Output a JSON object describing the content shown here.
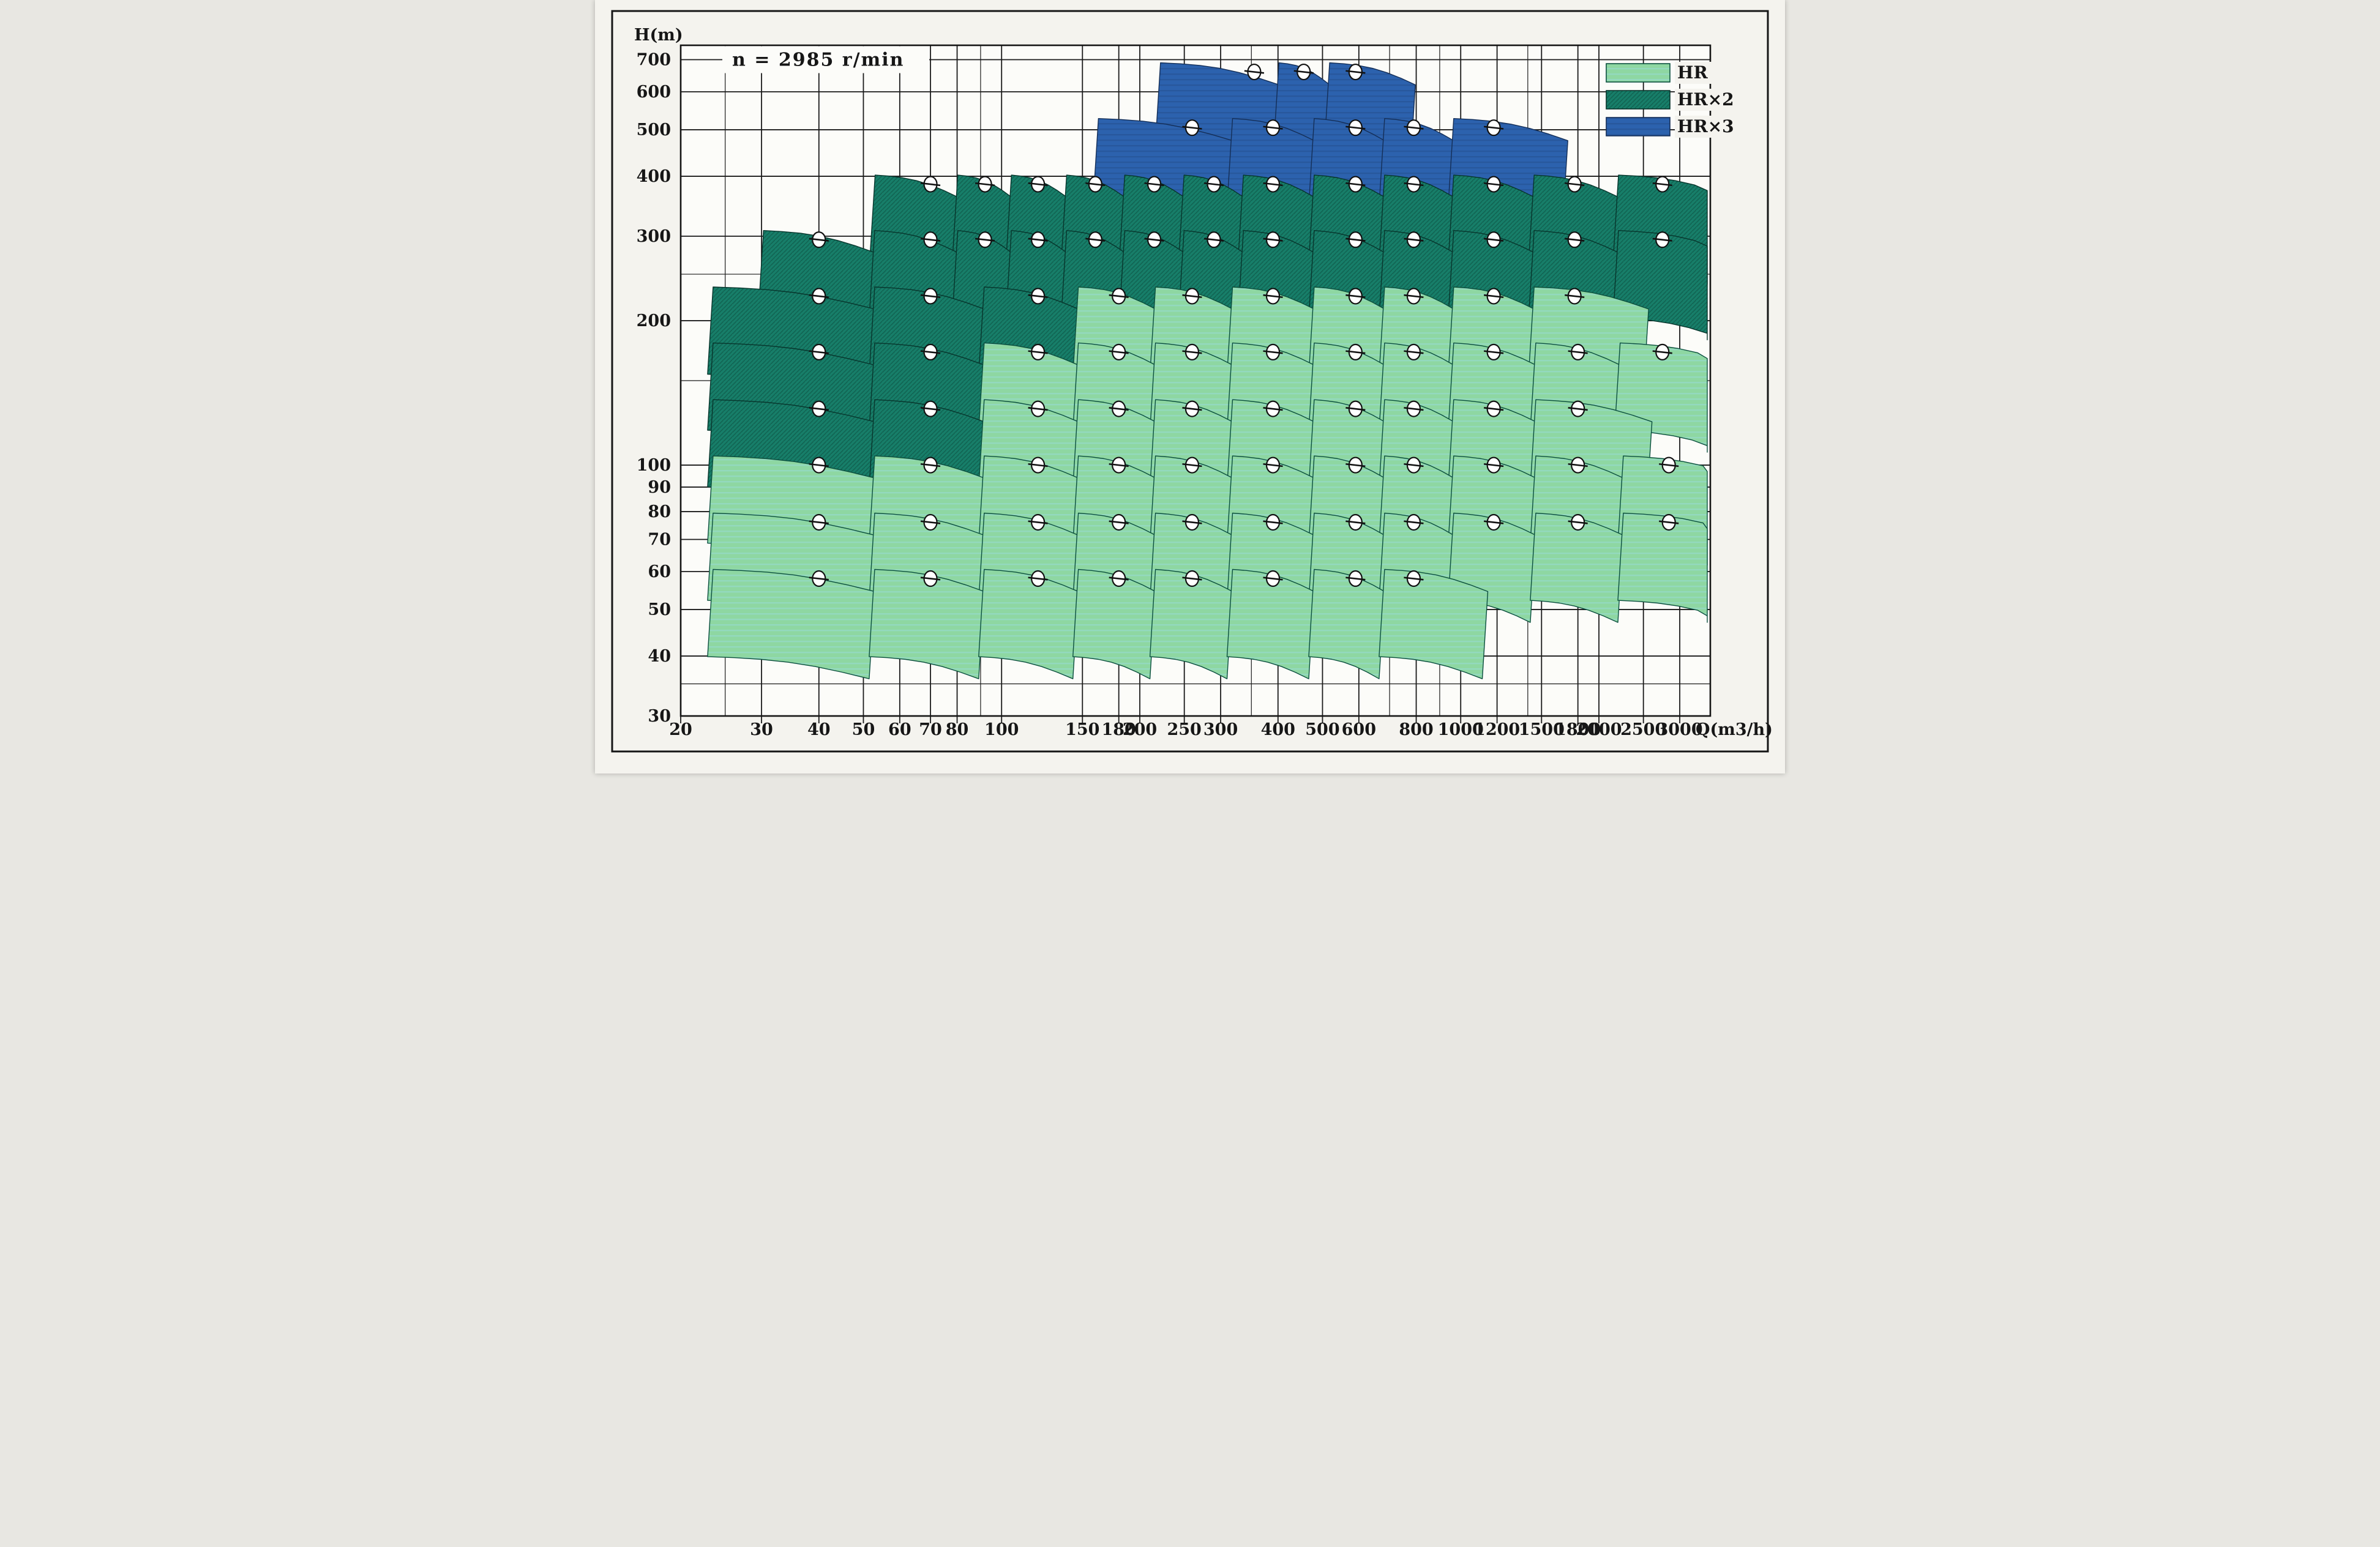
{
  "chart_data": {
    "type": "scatter",
    "subtype": "pump-range-tiles",
    "annotation": "n = 2985 r/min",
    "x_axis": {
      "label": "Q(m3/h)",
      "scale": "log",
      "range": [
        20,
        3500
      ],
      "ticks": [
        20,
        30,
        40,
        50,
        60,
        70,
        80,
        100,
        150,
        180,
        200,
        250,
        300,
        400,
        500,
        600,
        800,
        1000,
        1200,
        1500,
        1800,
        2000,
        2500,
        3000
      ],
      "minor": [
        25,
        90,
        350,
        700,
        900,
        1400
      ]
    },
    "y_axis": {
      "label": "H(m)",
      "scale": "log",
      "range": [
        30,
        750
      ],
      "ticks": [
        700,
        600,
        500,
        400,
        300,
        200,
        100,
        90,
        80,
        70,
        60,
        50,
        40,
        30
      ],
      "minor": [
        35,
        150,
        250
      ]
    },
    "legend_position": "top-right",
    "grid": true,
    "series": [
      {
        "name": "HR",
        "color": "#8ed7a2",
        "outline": "#0b4f3e",
        "rows": [
          {
            "head": 58,
            "q": [
              40,
              70,
              120,
              180,
              260,
              390,
              590,
              790
            ]
          },
          {
            "head": 76,
            "q": [
              40,
              70,
              120,
              180,
              260,
              390,
              590,
              790,
              1180,
              1800,
              2840
            ]
          },
          {
            "head": 100,
            "q": [
              40,
              70,
              120,
              180,
              260,
              390,
              590,
              790,
              1180,
              1800,
              2840
            ]
          },
          {
            "head": 131,
            "q": [
              120,
              180,
              260,
              390,
              590,
              790,
              1180,
              1800
            ]
          },
          {
            "head": 172,
            "q": [
              120,
              180,
              260,
              390,
              590,
              790,
              1180,
              1800,
              2750
            ]
          },
          {
            "head": 225,
            "q": [
              180,
              260,
              390,
              590,
              790,
              1180,
              1770
            ]
          }
        ]
      },
      {
        "name": "HR×2",
        "color": "#177e69",
        "outline": "#07352c",
        "rows": [
          {
            "head": 131,
            "q": [
              40,
              70
            ]
          },
          {
            "head": 172,
            "q": [
              40,
              70
            ]
          },
          {
            "head": 225,
            "q": [
              40,
              70,
              120
            ]
          },
          {
            "head": 295,
            "q": [
              40,
              70,
              92,
              120,
              160,
              215,
              290,
              390,
              590,
              790,
              1180,
              1770,
              2750
            ]
          },
          {
            "head": 385,
            "q": [
              70,
              92,
              120,
              160,
              215,
              290,
              390,
              590,
              790,
              1180,
              1770,
              2750
            ]
          }
        ]
      },
      {
        "name": "HR×3",
        "color": "#2c62ae",
        "outline": "#142e57",
        "rows": [
          {
            "head": 505,
            "q": [
              260,
              390,
              590,
              790,
              1180
            ]
          },
          {
            "head": 660,
            "q": [
              355,
              455,
              590
            ]
          }
        ]
      }
    ]
  },
  "legend": [
    {
      "label": "HR"
    },
    {
      "label": "HR×2"
    },
    {
      "label": "HR×3"
    }
  ],
  "frame": {
    "paper": "#f4f3ee",
    "plot_bg": "#fcfcf9",
    "grid_color": "#1a1a1a"
  }
}
